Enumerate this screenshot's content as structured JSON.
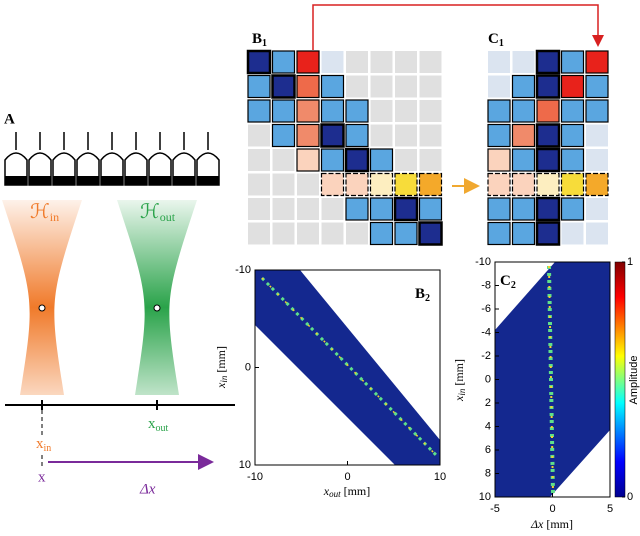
{
  "panel_a": {
    "label": "A",
    "beam_in": {
      "main": "ℋ",
      "sub": "in"
    },
    "beam_out": {
      "main": "ℋ",
      "sub": "out"
    },
    "x_in": {
      "main": "x",
      "sub": "in"
    },
    "x_out": {
      "main": "x",
      "sub": "out"
    },
    "x": "x",
    "delta_x": "Δx"
  },
  "palette": {
    "g": "#e0e0e0",
    "w": "#dbe4f0",
    "b": "#5aa6e0",
    "d": "#1d2d8f",
    "r": "#e8221b",
    "s": "#ee6a4a",
    "o": "#f08a6a",
    "p": "#fbd3bd",
    "l": "#fdeec0",
    "y": "#f7dc3a",
    "q": "#f4a92a"
  },
  "matrix_b1": {
    "label": {
      "main": "B",
      "sub": "1"
    },
    "rows": [
      "dbrwgggg",
      "bdsbgggg",
      "bbobbggg",
      "gbodbggg",
      "ggpbdbgg",
      "gggpplyq",
      "ggggbbdb",
      "gggggbbd"
    ]
  },
  "matrix_c1": {
    "label": {
      "main": "C",
      "sub": "1"
    },
    "rows": [
      "wwdbr",
      "wbdrb",
      "bbsbb",
      "bodbw",
      "pbdbw",
      "pplyq",
      "bbdbw",
      "bbdww"
    ]
  },
  "chart_b2": {
    "label": {
      "main": "B",
      "sub": "2"
    },
    "xlabel": {
      "main": "x",
      "sub": "out",
      "unit": "[mm]"
    },
    "ylabel": {
      "main": "x",
      "sub": "in",
      "unit": "[mm]"
    },
    "xlim": [
      -10,
      10
    ],
    "xticks": [
      -10,
      0,
      10
    ],
    "ylim": [
      -10,
      10
    ],
    "yticks": [
      -10,
      0,
      10
    ]
  },
  "chart_c2": {
    "label": {
      "main": "C",
      "sub": "2"
    },
    "xlabel": {
      "main": "Δx",
      "unit": "[mm]"
    },
    "ylabel": {
      "main": "x",
      "sub": "in",
      "unit": "[mm]"
    },
    "xlim": [
      -5,
      5
    ],
    "xticks": [
      -5,
      0,
      5
    ],
    "ylim": [
      -10,
      10
    ],
    "yticks": [
      -10,
      -8,
      -6,
      -4,
      -2,
      0,
      2,
      4,
      6,
      8,
      10
    ]
  },
  "colorbar": {
    "label": "Amplitude",
    "lim": [
      0,
      1
    ],
    "ticks": [
      0,
      1
    ]
  }
}
